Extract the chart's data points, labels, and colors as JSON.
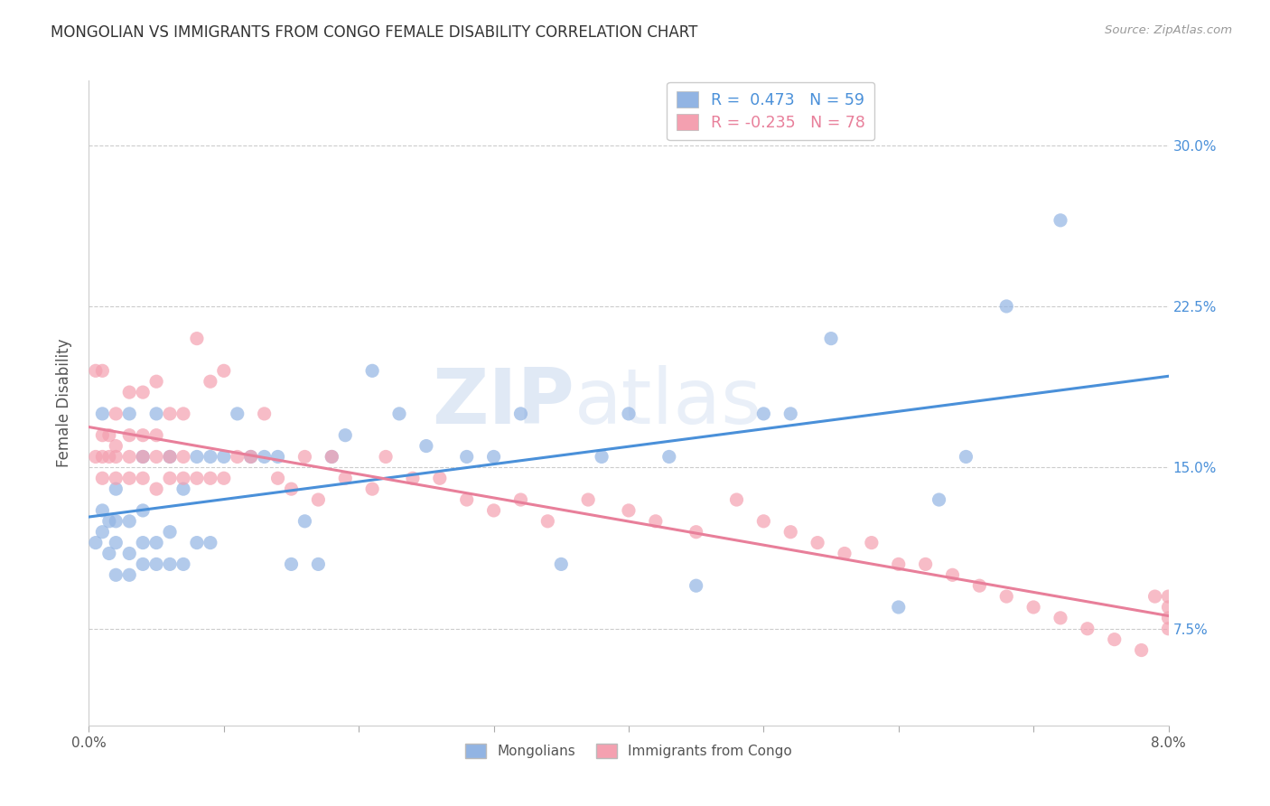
{
  "title": "MONGOLIAN VS IMMIGRANTS FROM CONGO FEMALE DISABILITY CORRELATION CHART",
  "source": "Source: ZipAtlas.com",
  "ylabel": "Female Disability",
  "ytick_labels": [
    "7.5%",
    "15.0%",
    "22.5%",
    "30.0%"
  ],
  "ytick_values": [
    0.075,
    0.15,
    0.225,
    0.3
  ],
  "xlim": [
    0.0,
    0.08
  ],
  "ylim": [
    0.03,
    0.33
  ],
  "watermark": "ZIPatlas",
  "legend_blue_r": "R =  0.473",
  "legend_blue_n": "N = 59",
  "legend_pink_r": "R = -0.235",
  "legend_pink_n": "N = 78",
  "legend_label_blue": "Mongolians",
  "legend_label_pink": "Immigrants from Congo",
  "blue_color": "#92b4e3",
  "pink_color": "#f4a0b0",
  "blue_line_color": "#4a90d9",
  "pink_line_color": "#e87f9a",
  "mongolian_x": [
    0.0005,
    0.001,
    0.001,
    0.001,
    0.0015,
    0.0015,
    0.002,
    0.002,
    0.002,
    0.002,
    0.003,
    0.003,
    0.003,
    0.003,
    0.004,
    0.004,
    0.004,
    0.004,
    0.005,
    0.005,
    0.005,
    0.006,
    0.006,
    0.006,
    0.007,
    0.007,
    0.008,
    0.008,
    0.009,
    0.009,
    0.01,
    0.011,
    0.012,
    0.013,
    0.014,
    0.015,
    0.016,
    0.017,
    0.018,
    0.019,
    0.021,
    0.023,
    0.025,
    0.028,
    0.03,
    0.032,
    0.035,
    0.038,
    0.04,
    0.043,
    0.045,
    0.05,
    0.052,
    0.055,
    0.06,
    0.063,
    0.065,
    0.068,
    0.072
  ],
  "mongolian_y": [
    0.115,
    0.12,
    0.13,
    0.175,
    0.11,
    0.125,
    0.1,
    0.115,
    0.125,
    0.14,
    0.1,
    0.11,
    0.125,
    0.175,
    0.105,
    0.115,
    0.13,
    0.155,
    0.105,
    0.115,
    0.175,
    0.105,
    0.12,
    0.155,
    0.105,
    0.14,
    0.115,
    0.155,
    0.115,
    0.155,
    0.155,
    0.175,
    0.155,
    0.155,
    0.155,
    0.105,
    0.125,
    0.105,
    0.155,
    0.165,
    0.195,
    0.175,
    0.16,
    0.155,
    0.155,
    0.175,
    0.105,
    0.155,
    0.175,
    0.155,
    0.095,
    0.175,
    0.175,
    0.21,
    0.085,
    0.135,
    0.155,
    0.225,
    0.265
  ],
  "congo_x": [
    0.0005,
    0.0005,
    0.001,
    0.001,
    0.001,
    0.001,
    0.0015,
    0.0015,
    0.002,
    0.002,
    0.002,
    0.002,
    0.003,
    0.003,
    0.003,
    0.003,
    0.004,
    0.004,
    0.004,
    0.004,
    0.005,
    0.005,
    0.005,
    0.005,
    0.006,
    0.006,
    0.006,
    0.007,
    0.007,
    0.007,
    0.008,
    0.008,
    0.009,
    0.009,
    0.01,
    0.01,
    0.011,
    0.012,
    0.013,
    0.014,
    0.015,
    0.016,
    0.017,
    0.018,
    0.019,
    0.021,
    0.022,
    0.024,
    0.026,
    0.028,
    0.03,
    0.032,
    0.034,
    0.037,
    0.04,
    0.042,
    0.045,
    0.048,
    0.05,
    0.052,
    0.054,
    0.056,
    0.058,
    0.06,
    0.062,
    0.064,
    0.066,
    0.068,
    0.07,
    0.072,
    0.074,
    0.076,
    0.078,
    0.079,
    0.08,
    0.08,
    0.08,
    0.08
  ],
  "congo_y": [
    0.155,
    0.195,
    0.145,
    0.155,
    0.165,
    0.195,
    0.155,
    0.165,
    0.145,
    0.155,
    0.16,
    0.175,
    0.145,
    0.155,
    0.165,
    0.185,
    0.145,
    0.155,
    0.165,
    0.185,
    0.14,
    0.155,
    0.165,
    0.19,
    0.145,
    0.155,
    0.175,
    0.145,
    0.155,
    0.175,
    0.145,
    0.21,
    0.145,
    0.19,
    0.145,
    0.195,
    0.155,
    0.155,
    0.175,
    0.145,
    0.14,
    0.155,
    0.135,
    0.155,
    0.145,
    0.14,
    0.155,
    0.145,
    0.145,
    0.135,
    0.13,
    0.135,
    0.125,
    0.135,
    0.13,
    0.125,
    0.12,
    0.135,
    0.125,
    0.12,
    0.115,
    0.11,
    0.115,
    0.105,
    0.105,
    0.1,
    0.095,
    0.09,
    0.085,
    0.08,
    0.075,
    0.07,
    0.065,
    0.09,
    0.085,
    0.09,
    0.08,
    0.075
  ]
}
